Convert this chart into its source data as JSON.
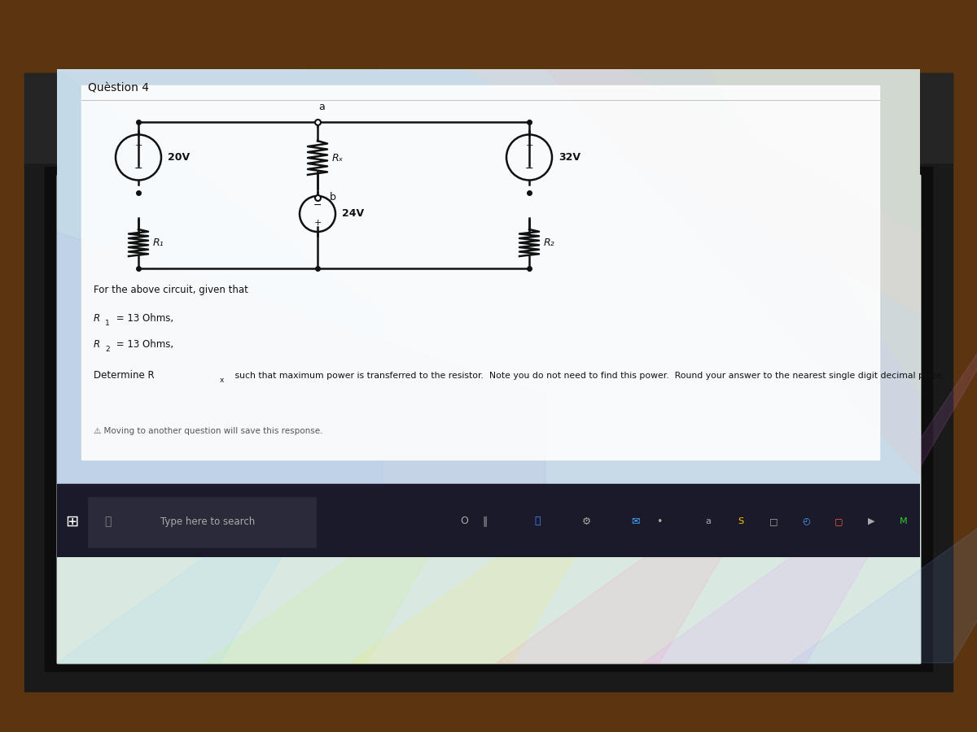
{
  "title": "Quèstion 4",
  "bg_outer": "#1a1008",
  "bg_wood": "#8B5E1A",
  "screen_frame": "#111111",
  "screen_bg_top": "#d8e8f0",
  "screen_bg_iridescent": true,
  "white_area_color": "#f0f0ee",
  "text_color": "#222222",
  "line_color": "#111111",
  "source_20V_label": "20V",
  "source_32V_label": "32V",
  "source_24V_label": "24V",
  "Rx_label": "Rₓ",
  "R1_label": "R₁",
  "R2_label": "R₂",
  "node_a_label": "a",
  "node_b_label": "b",
  "footer_text": "⚠ Moving to another question will save this response.",
  "taskbar_text": "Type here to search",
  "q_text_line1": "For the above circuit, given that",
  "q_text_line2": "R₁ = 13 Ohms,",
  "q_text_line3": "R₂ = 13 Ohms,",
  "q_text_line4": "Determine Rₓ such that maximum power is transferred to the resistor.  Note you do not need to find this power.  Round your answer to the nearest single digit decimal place."
}
